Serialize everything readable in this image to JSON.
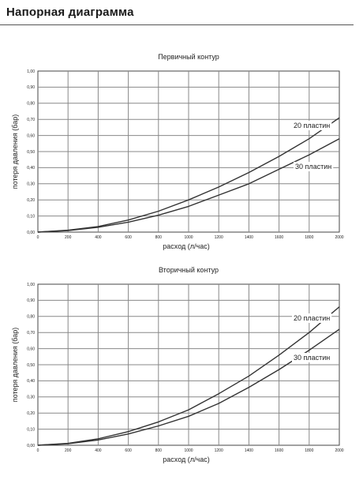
{
  "header": {
    "title": "Напорная диаграмма"
  },
  "chart_data": [
    {
      "type": "line",
      "title": "Первичный контур",
      "xlabel": "расход (л/час)",
      "ylabel": "потеря давления (бар)",
      "xlim": [
        0,
        2000
      ],
      "ylim": [
        0,
        1.0
      ],
      "x_ticks": [
        0,
        200,
        400,
        600,
        800,
        1000,
        1200,
        1400,
        1600,
        1800,
        2000
      ],
      "x_tick_labels": [
        "0",
        "200",
        "400",
        "600",
        "800",
        "1000",
        "1200",
        "1400",
        "1600",
        "1800",
        "2000"
      ],
      "y_ticks": [
        0,
        0.1,
        0.2,
        0.3,
        0.4,
        0.5,
        0.6,
        0.7,
        0.8,
        0.9,
        1.0
      ],
      "y_tick_labels": [
        "0,00",
        "0,10",
        "0,20",
        "0,30",
        "0,40",
        "0,50",
        "0,60",
        "0,70",
        "0,80",
        "0,90",
        "1,00"
      ],
      "grid": true,
      "series": [
        {
          "name": "20 пластин",
          "x": [
            0,
            200,
            400,
            600,
            800,
            1000,
            1200,
            1400,
            1600,
            1800,
            2000
          ],
          "y": [
            0,
            0.012,
            0.035,
            0.075,
            0.13,
            0.2,
            0.28,
            0.37,
            0.47,
            0.58,
            0.71
          ]
        },
        {
          "name": "30 пластин",
          "x": [
            0,
            200,
            400,
            600,
            800,
            1000,
            1200,
            1400,
            1600,
            1800,
            2000
          ],
          "y": [
            0,
            0.01,
            0.03,
            0.062,
            0.105,
            0.16,
            0.23,
            0.3,
            0.39,
            0.48,
            0.58
          ]
        }
      ]
    },
    {
      "type": "line",
      "title": "Вторичный контур",
      "xlabel": "расход (л/час)",
      "ylabel": "потеря давления (бар)",
      "xlim": [
        0,
        2000
      ],
      "ylim": [
        0,
        1.0
      ],
      "x_ticks": [
        0,
        200,
        400,
        600,
        800,
        1000,
        1200,
        1400,
        1600,
        1800,
        2000
      ],
      "x_tick_labels": [
        "0",
        "200",
        "400",
        "600",
        "800",
        "1000",
        "1200",
        "1400",
        "1600",
        "1800",
        "2000"
      ],
      "y_ticks": [
        0,
        0.1,
        0.2,
        0.3,
        0.4,
        0.5,
        0.6,
        0.7,
        0.8,
        0.9,
        1.0
      ],
      "y_tick_labels": [
        "0,00",
        "0,10",
        "0,20",
        "0,30",
        "0,40",
        "0,50",
        "0,60",
        "0,70",
        "0,80",
        "0,90",
        "1,00"
      ],
      "grid": true,
      "series": [
        {
          "name": "20 пластин",
          "x": [
            0,
            200,
            400,
            600,
            800,
            1000,
            1200,
            1400,
            1600,
            1800,
            2000
          ],
          "y": [
            0,
            0.012,
            0.04,
            0.085,
            0.145,
            0.22,
            0.32,
            0.43,
            0.56,
            0.7,
            0.86
          ]
        },
        {
          "name": "30 пластин",
          "x": [
            0,
            200,
            400,
            600,
            800,
            1000,
            1200,
            1400,
            1600,
            1800,
            2000
          ],
          "y": [
            0,
            0.01,
            0.033,
            0.07,
            0.12,
            0.18,
            0.26,
            0.36,
            0.47,
            0.59,
            0.72
          ]
        }
      ]
    }
  ]
}
